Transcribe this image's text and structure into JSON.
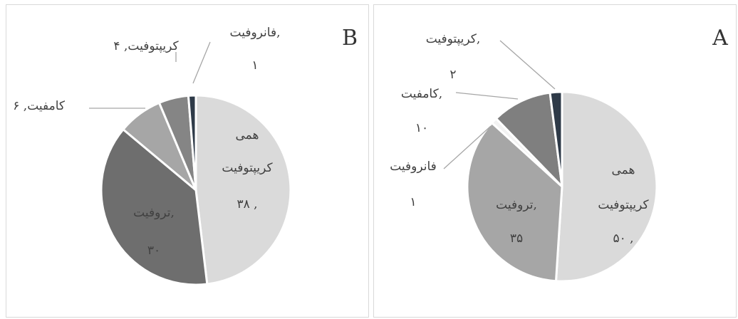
{
  "chart_data": [
    {
      "type": "pie",
      "panel_letter": "B",
      "slices": [
        {
          "name": "همی کریپتوفیت",
          "value": 38,
          "color": "#dadada"
        },
        {
          "name": "تروفیت",
          "value": 30,
          "color": "#6e6e6e"
        },
        {
          "name": "کامفیت",
          "value": 6,
          "color": "#a6a6a6"
        },
        {
          "name": "کریپتوفیت",
          "value": 4,
          "color": "#858585"
        },
        {
          "name": "فانروفیت",
          "value": 1,
          "color": "#2e3a48"
        }
      ],
      "labels": [
        {
          "lines": [
            "همی",
            "کریپتوفیت",
            "۳۸ ,"
          ]
        },
        {
          "lines": [
            "تروفیت,",
            "۳۰"
          ]
        },
        {
          "lines": [
            "کامفیت, ۶"
          ]
        },
        {
          "lines": [
            "کریپتوفیت, ۴"
          ]
        },
        {
          "lines": [
            "فانروفیت,",
            "۱"
          ]
        }
      ]
    },
    {
      "type": "pie",
      "panel_letter": "A",
      "slices": [
        {
          "name": "همی کریپتوفیت",
          "value": 50,
          "color": "#dadada"
        },
        {
          "name": "تروفیت",
          "value": 35,
          "color": "#a6a6a6"
        },
        {
          "name": "فانروفیت",
          "value": 1,
          "color": "#f2f2f2"
        },
        {
          "name": "کامفیت",
          "value": 10,
          "color": "#7f7f7f"
        },
        {
          "name": "کریپتوفیت",
          "value": 2,
          "color": "#2e3a48"
        }
      ],
      "labels": [
        {
          "lines": [
            "همی",
            "کریپتوفیت",
            "۵۰ ,"
          ]
        },
        {
          "lines": [
            "تروفیت,",
            "۳۵"
          ]
        },
        {
          "lines": [
            "فانروفیت",
            "۱"
          ]
        },
        {
          "lines": [
            "کامفیت,",
            "۱۰"
          ]
        },
        {
          "lines": [
            "کریپتوفیت,",
            "۲"
          ]
        }
      ]
    }
  ]
}
